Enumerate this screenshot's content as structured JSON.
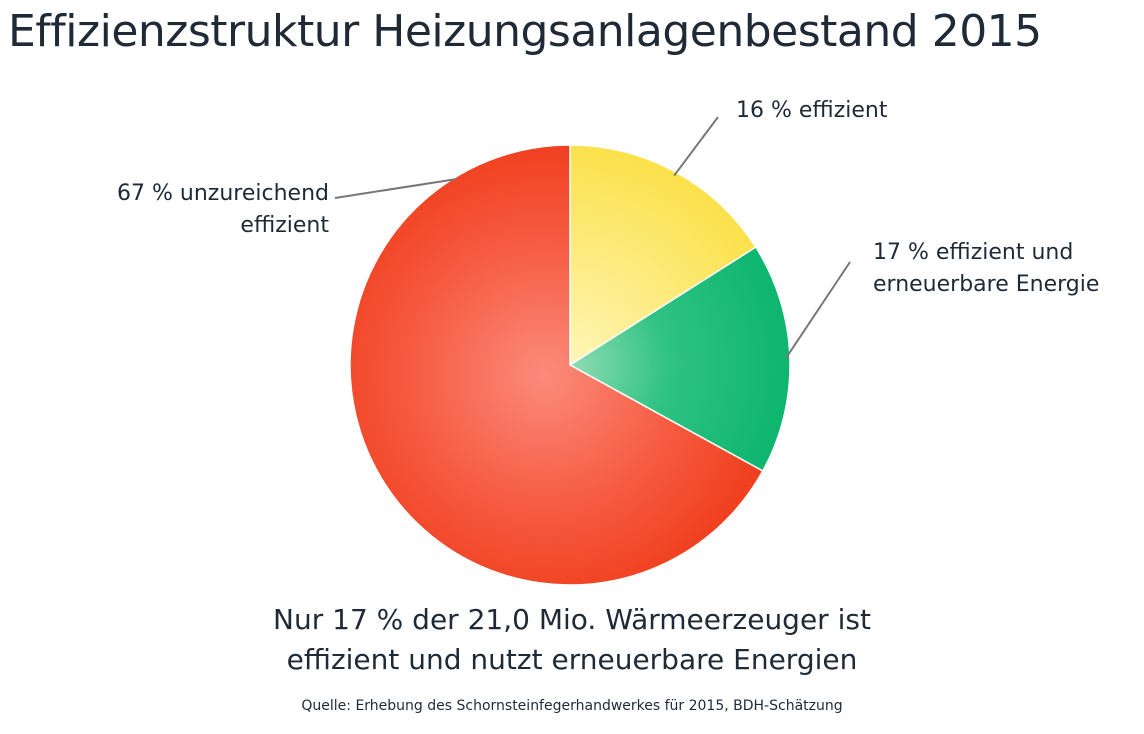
{
  "title": "Effizienzstruktur Heizungsanlagenbestand 2015",
  "chart_data": {
    "type": "pie",
    "title": "Effizienzstruktur Heizungsanlagenbestand 2015",
    "slices": [
      {
        "label_lines": [
          "16 % effizient"
        ],
        "value": 16,
        "color": "#fbe55a"
      },
      {
        "label_lines": [
          "17 % effizient und",
          "erneuerbare Energie"
        ],
        "value": 17,
        "color": "#12b872"
      },
      {
        "label_lines": [
          "67 % unzureichend",
          "effizient"
        ],
        "value": 67,
        "color": "#f4492f"
      }
    ]
  },
  "caption_lines": [
    "Nur 17 % der 21,0 Mio. Wärmeerzeuger ist",
    "effizient und nutzt erneuerbare Energien"
  ],
  "source": "Quelle: Erhebung des Schornsteinfegerhandwerkes für 2015, BDH-Schätzung"
}
